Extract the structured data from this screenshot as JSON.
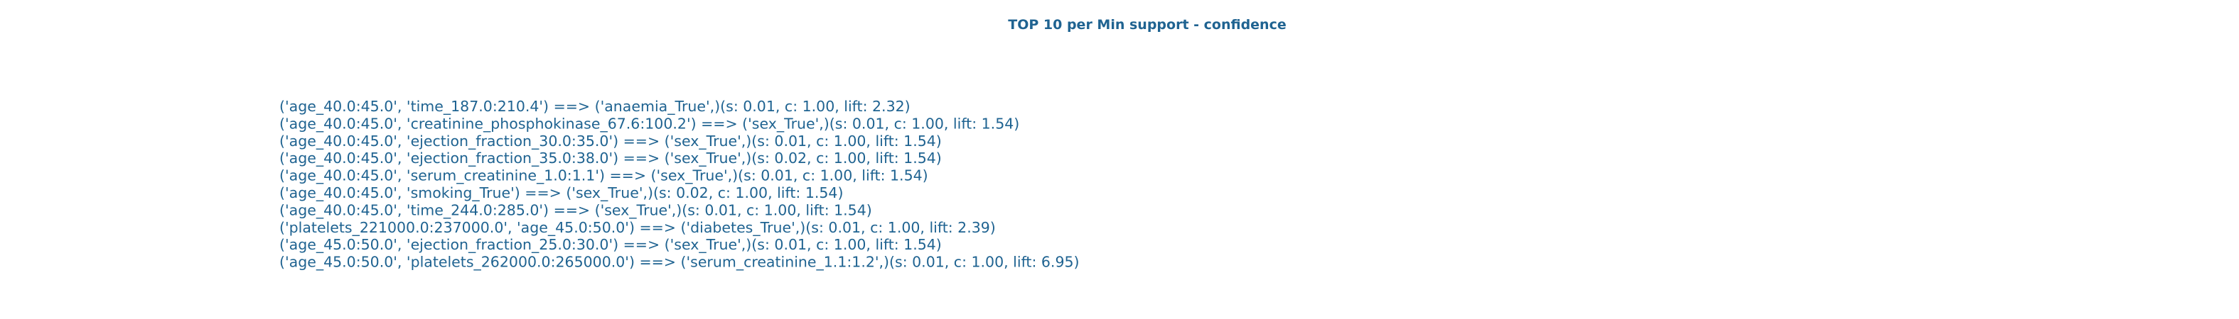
{
  "title": "TOP 10 per Min support - confidence",
  "lines": [
    "('age_40.0:45.0', 'time_187.0:210.4') ==> ('anaemia_True',)(s: 0.01, c: 1.00, lift: 2.32)",
    "('age_40.0:45.0', 'creatinine_phosphokinase_67.6:100.2') ==> ('sex_True',)(s: 0.01, c: 1.00, lift: 1.54)",
    "('age_40.0:45.0', 'ejection_fraction_30.0:35.0') ==> ('sex_True',)(s: 0.01, c: 1.00, lift: 1.54)",
    "('age_40.0:45.0', 'ejection_fraction_35.0:38.0') ==> ('sex_True',)(s: 0.02, c: 1.00, lift: 1.54)",
    "('age_40.0:45.0', 'serum_creatinine_1.0:1.1') ==> ('sex_True',)(s: 0.01, c: 1.00, lift: 1.54)",
    "('age_40.0:45.0', 'smoking_True') ==> ('sex_True',)(s: 0.02, c: 1.00, lift: 1.54)",
    "('age_40.0:45.0', 'time_244.0:285.0') ==> ('sex_True',)(s: 0.01, c: 1.00, lift: 1.54)",
    "('platelets_221000.0:237000.0', 'age_45.0:50.0') ==> ('diabetes_True',)(s: 0.01, c: 1.00, lift: 2.39)",
    "('age_45.0:50.0', 'ejection_fraction_25.0:30.0') ==> ('sex_True',)(s: 0.01, c: 1.00, lift: 1.54)",
    "('age_45.0:50.0', 'platelets_262000.0:265000.0') ==> ('serum_creatinine_1.1:1.2',)(s: 0.01, c: 1.00, lift: 6.95)"
  ]
}
